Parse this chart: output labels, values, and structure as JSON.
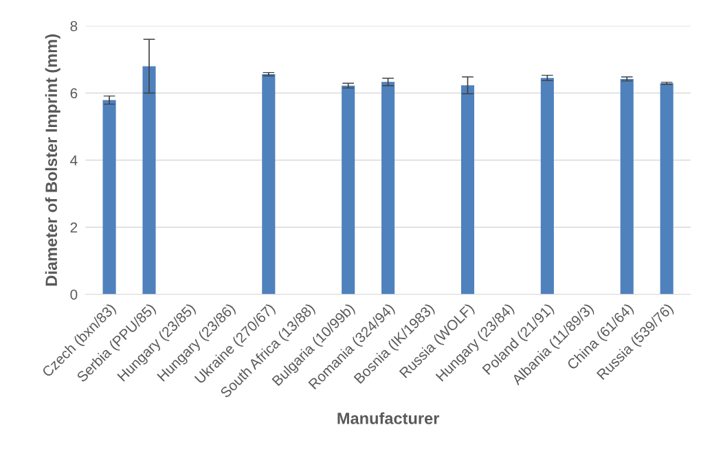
{
  "chart_data": {
    "type": "bar",
    "xlabel": "Manufacturer",
    "ylabel": "Diameter of Bolster Imprint (mm)",
    "categories": [
      "Czech (bxn/83)",
      "Serbia (PPU/85)",
      "Hungary (23/85)",
      "Hungary (23/86)",
      "Ukraine (270/67)",
      "South Africa (13/88)",
      "Bulgaria (10/99b)",
      "Romania (324/94)",
      "Bosnia (IK/1983)",
      "Russia (WOLF)",
      "Hungary (23/84)",
      "Poland (21/91)",
      "Albania (11/89/3)",
      "China (61/64)",
      "Russia (539/76)"
    ],
    "values": [
      5.79,
      6.8,
      0,
      0,
      6.56,
      0,
      6.22,
      6.33,
      0,
      6.23,
      0,
      6.45,
      0,
      6.42,
      6.29
    ],
    "errors": [
      0.12,
      0.8,
      null,
      null,
      0.05,
      null,
      0.07,
      0.11,
      null,
      0.25,
      null,
      0.08,
      null,
      0.06,
      0.03
    ],
    "color": "#4f81bd",
    "ylim": [
      0,
      8
    ],
    "yticks": [
      0,
      2,
      4,
      6,
      8
    ],
    "grid": "y",
    "legend": false
  }
}
